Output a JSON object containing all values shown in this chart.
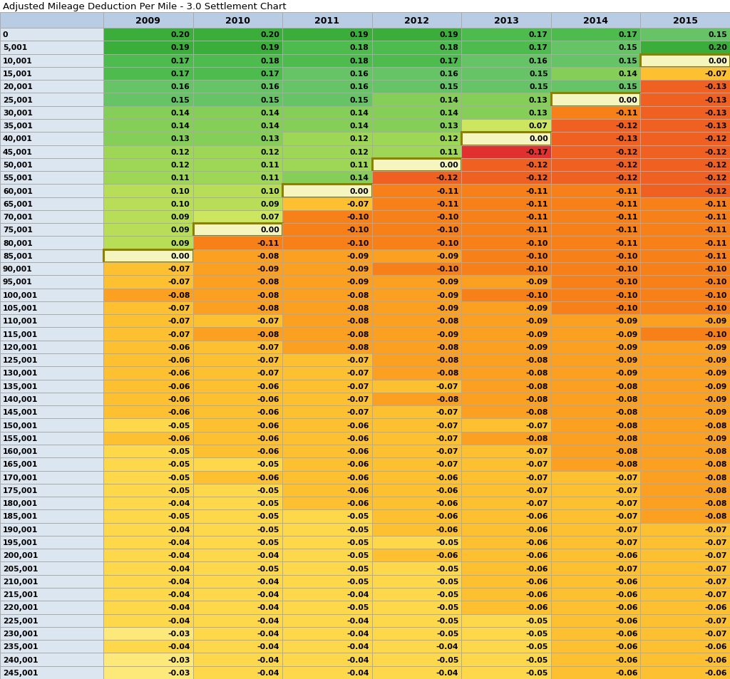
{
  "title": "Adjusted Mileage Deduction Per Mile - 3.0 Settlement Chart",
  "columns": [
    "2009",
    "2010",
    "2011",
    "2012",
    "2013",
    "2014",
    "2015"
  ],
  "row_labels": [
    "0",
    "5,001",
    "10,001",
    "15,001",
    "20,001",
    "25,001",
    "30,001",
    "35,001",
    "40,001",
    "45,001",
    "50,001",
    "55,001",
    "60,001",
    "65,001",
    "70,001",
    "75,001",
    "80,001",
    "85,001",
    "90,001",
    "95,001",
    "100,001",
    "105,001",
    "110,001",
    "115,001",
    "120,001",
    "125,001",
    "130,001",
    "135,001",
    "140,001",
    "145,001",
    "150,001",
    "155,001",
    "160,001",
    "165,001",
    "170,001",
    "175,001",
    "180,001",
    "185,001",
    "190,001",
    "195,001",
    "200,001",
    "205,001",
    "210,001",
    "215,001",
    "220,001",
    "225,001",
    "230,001",
    "235,001",
    "240,001",
    "245,001"
  ],
  "data": [
    [
      0.2,
      0.2,
      0.19,
      0.19,
      0.17,
      0.17,
      0.15
    ],
    [
      0.19,
      0.19,
      0.18,
      0.18,
      0.17,
      0.15,
      0.2
    ],
    [
      0.17,
      0.18,
      0.18,
      0.17,
      0.16,
      0.15,
      0.0
    ],
    [
      0.17,
      0.17,
      0.16,
      0.16,
      0.15,
      0.14,
      -0.07
    ],
    [
      0.16,
      0.16,
      0.16,
      0.15,
      0.15,
      0.15,
      -0.13
    ],
    [
      0.15,
      0.15,
      0.15,
      0.14,
      0.13,
      0.0,
      -0.13
    ],
    [
      0.14,
      0.14,
      0.14,
      0.14,
      0.13,
      -0.11,
      -0.13
    ],
    [
      0.14,
      0.14,
      0.14,
      0.13,
      0.07,
      -0.12,
      -0.13
    ],
    [
      0.13,
      0.13,
      0.12,
      0.12,
      0.0,
      -0.13,
      -0.12
    ],
    [
      0.12,
      0.12,
      0.12,
      0.11,
      -0.17,
      -0.12,
      -0.12
    ],
    [
      0.12,
      0.11,
      0.11,
      0.0,
      -0.12,
      -0.12,
      -0.12
    ],
    [
      0.11,
      0.11,
      0.14,
      -0.12,
      -0.12,
      -0.12,
      -0.12
    ],
    [
      0.1,
      0.1,
      0.0,
      -0.11,
      -0.11,
      -0.11,
      -0.12
    ],
    [
      0.1,
      0.09,
      -0.07,
      -0.11,
      -0.11,
      -0.11,
      -0.11
    ],
    [
      0.09,
      0.07,
      -0.1,
      -0.1,
      -0.11,
      -0.11,
      -0.11
    ],
    [
      0.09,
      0.0,
      -0.1,
      -0.1,
      -0.11,
      -0.11,
      -0.11
    ],
    [
      0.09,
      -0.11,
      -0.1,
      -0.1,
      -0.1,
      -0.11,
      -0.11
    ],
    [
      0.0,
      -0.08,
      -0.09,
      -0.09,
      -0.1,
      -0.1,
      -0.11
    ],
    [
      -0.07,
      -0.09,
      -0.09,
      -0.1,
      -0.1,
      -0.1,
      -0.1
    ],
    [
      -0.07,
      -0.08,
      -0.09,
      -0.09,
      -0.09,
      -0.1,
      -0.1
    ],
    [
      -0.08,
      -0.08,
      -0.08,
      -0.09,
      -0.1,
      -0.1,
      -0.1
    ],
    [
      -0.07,
      -0.08,
      -0.08,
      -0.09,
      -0.09,
      -0.1,
      -0.1
    ],
    [
      -0.07,
      -0.07,
      -0.08,
      -0.08,
      -0.09,
      -0.09,
      -0.09
    ],
    [
      -0.07,
      -0.08,
      -0.08,
      -0.09,
      -0.09,
      -0.09,
      -0.1
    ],
    [
      -0.06,
      -0.07,
      -0.08,
      -0.08,
      -0.09,
      -0.09,
      -0.09
    ],
    [
      -0.06,
      -0.07,
      -0.07,
      -0.08,
      -0.08,
      -0.09,
      -0.09
    ],
    [
      -0.06,
      -0.07,
      -0.07,
      -0.08,
      -0.08,
      -0.09,
      -0.09
    ],
    [
      -0.06,
      -0.06,
      -0.07,
      -0.07,
      -0.08,
      -0.08,
      -0.09
    ],
    [
      -0.06,
      -0.06,
      -0.07,
      -0.08,
      -0.08,
      -0.08,
      -0.09
    ],
    [
      -0.06,
      -0.06,
      -0.07,
      -0.07,
      -0.08,
      -0.08,
      -0.09
    ],
    [
      -0.05,
      -0.06,
      -0.06,
      -0.07,
      -0.07,
      -0.08,
      -0.08
    ],
    [
      -0.06,
      -0.06,
      -0.06,
      -0.07,
      -0.08,
      -0.08,
      -0.09
    ],
    [
      -0.05,
      -0.06,
      -0.06,
      -0.07,
      -0.07,
      -0.08,
      -0.08
    ],
    [
      -0.05,
      -0.05,
      -0.06,
      -0.07,
      -0.07,
      -0.08,
      -0.08
    ],
    [
      -0.05,
      -0.06,
      -0.06,
      -0.06,
      -0.07,
      -0.07,
      -0.08
    ],
    [
      -0.05,
      -0.05,
      -0.06,
      -0.06,
      -0.07,
      -0.07,
      -0.08
    ],
    [
      -0.04,
      -0.05,
      -0.06,
      -0.06,
      -0.07,
      -0.07,
      -0.08
    ],
    [
      -0.05,
      -0.05,
      -0.05,
      -0.06,
      -0.06,
      -0.07,
      -0.08
    ],
    [
      -0.04,
      -0.05,
      -0.05,
      -0.06,
      -0.06,
      -0.07,
      -0.07
    ],
    [
      -0.04,
      -0.05,
      -0.05,
      -0.05,
      -0.06,
      -0.07,
      -0.07
    ],
    [
      -0.04,
      -0.04,
      -0.05,
      -0.06,
      -0.06,
      -0.06,
      -0.07
    ],
    [
      -0.04,
      -0.05,
      -0.05,
      -0.05,
      -0.06,
      -0.07,
      -0.07
    ],
    [
      -0.04,
      -0.04,
      -0.05,
      -0.05,
      -0.06,
      -0.06,
      -0.07
    ],
    [
      -0.04,
      -0.04,
      -0.04,
      -0.05,
      -0.06,
      -0.06,
      -0.07
    ],
    [
      -0.04,
      -0.04,
      -0.05,
      -0.05,
      -0.06,
      -0.06,
      -0.06
    ],
    [
      -0.04,
      -0.04,
      -0.04,
      -0.05,
      -0.05,
      -0.06,
      -0.07
    ],
    [
      -0.03,
      -0.04,
      -0.04,
      -0.05,
      -0.05,
      -0.06,
      -0.07
    ],
    [
      -0.04,
      -0.04,
      -0.04,
      -0.04,
      -0.05,
      -0.06,
      -0.06
    ],
    [
      -0.03,
      -0.04,
      -0.04,
      -0.05,
      -0.05,
      -0.06,
      -0.06
    ],
    [
      -0.03,
      -0.04,
      -0.04,
      -0.04,
      -0.05,
      -0.06,
      -0.06
    ]
  ],
  "header_bg": "#b8cce4",
  "row_label_bg": "#dce6f1",
  "title_color": "#000000",
  "grid_color": "#aaaaaa",
  "text_color": "#000000",
  "zero_outline_color": "#8B8000",
  "fig_width": 10.24,
  "fig_height": 9.54,
  "dpi": 100,
  "title_fontsize": 9.5,
  "header_fontsize": 9.0,
  "cell_fontsize": 7.8,
  "row_label_fontsize": 7.8
}
